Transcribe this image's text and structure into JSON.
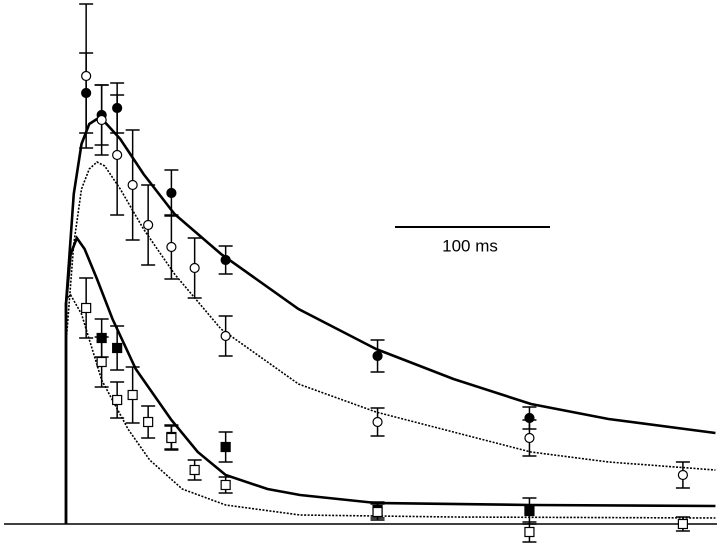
{
  "chart_data": {
    "type": "scatter",
    "xlim": [
      -40,
      420
    ],
    "ylim": [
      0,
      5.2
    ],
    "scale_bar": {
      "label": "100 ms",
      "length": 100
    },
    "series": [
      {
        "style": "markers",
        "marker": "circle",
        "filled": true,
        "color": "#000",
        "x": [
          13,
          23,
          33,
          68,
          103,
          201,
          299
        ],
        "values": [
          4.31,
          4.09,
          4.16,
          3.31,
          2.64,
          1.68,
          1.06
        ],
        "errors": [
          0.4,
          0.3,
          0.25,
          0.23,
          0.14,
          0.16,
          0.11
        ]
      },
      {
        "style": "markers",
        "marker": "circle",
        "filled": false,
        "color": "#000",
        "x": [
          13,
          23,
          33,
          43,
          53,
          68,
          83,
          103,
          201,
          299,
          398
        ],
        "values": [
          4.48,
          4.04,
          3.69,
          3.39,
          2.99,
          2.77,
          2.56,
          1.88,
          1.02,
          0.86,
          0.49
        ],
        "errors": [
          0.72,
          0.35,
          0.6,
          0.55,
          0.4,
          0.32,
          0.3,
          0.2,
          0.14,
          0.18,
          0.13
        ]
      },
      {
        "style": "markers",
        "marker": "square",
        "filled": true,
        "color": "#000",
        "x": [
          23,
          33,
          68,
          103,
          201,
          299
        ],
        "values": [
          1.86,
          1.76,
          0.87,
          0.77,
          0.14,
          0.13
        ],
        "errors": [
          0.19,
          0.22,
          0.12,
          0.15,
          0.08,
          0.13
        ]
      },
      {
        "style": "markers",
        "marker": "square",
        "filled": false,
        "color": "#000",
        "x": [
          13,
          23,
          33,
          43,
          53,
          68,
          83,
          103,
          201,
          299,
          398
        ],
        "values": [
          2.16,
          1.62,
          1.24,
          1.29,
          1.02,
          0.86,
          0.54,
          0.39,
          0.12,
          -0.08,
          0.0
        ],
        "errors": [
          0.3,
          0.25,
          0.18,
          0.28,
          0.16,
          0.12,
          0.1,
          0.08,
          0.08,
          0.1,
          0.07
        ]
      },
      {
        "style": "solid",
        "color": "#000",
        "x": [
          0,
          0,
          5,
          10,
          15,
          20,
          25,
          35,
          50,
          70,
          100,
          150,
          200,
          250,
          300,
          350,
          419
        ],
        "values": [
          0,
          2.2,
          3.3,
          3.8,
          4.0,
          4.05,
          4.02,
          3.85,
          3.5,
          3.1,
          2.7,
          2.15,
          1.75,
          1.45,
          1.2,
          1.05,
          0.91
        ]
      },
      {
        "style": "dotted",
        "color": "#000",
        "x": [
          0,
          0,
          5,
          10,
          15,
          20,
          25,
          35,
          50,
          70,
          100,
          150,
          200,
          250,
          300,
          350,
          419
        ],
        "values": [
          0,
          1.8,
          2.8,
          3.35,
          3.55,
          3.62,
          3.58,
          3.35,
          2.95,
          2.5,
          1.95,
          1.4,
          1.12,
          0.92,
          0.72,
          0.62,
          0.54
        ]
      },
      {
        "style": "solid",
        "color": "#000",
        "x": [
          0,
          0,
          3,
          7,
          12,
          20,
          30,
          45,
          68,
          85,
          103,
          130,
          151,
          200,
          300,
          419
        ],
        "values": [
          0,
          2.2,
          2.7,
          2.86,
          2.75,
          2.45,
          2.05,
          1.55,
          1.04,
          0.72,
          0.49,
          0.35,
          0.29,
          0.21,
          0.19,
          0.18
        ]
      },
      {
        "style": "dotted",
        "color": "#000",
        "x": [
          0,
          0,
          3,
          10,
          23,
          40,
          54,
          75,
          103,
          151,
          250,
          419
        ],
        "values": [
          0,
          2.25,
          2.29,
          2.1,
          1.44,
          0.95,
          0.64,
          0.35,
          0.19,
          0.09,
          0.07,
          0.06
        ]
      }
    ]
  }
}
